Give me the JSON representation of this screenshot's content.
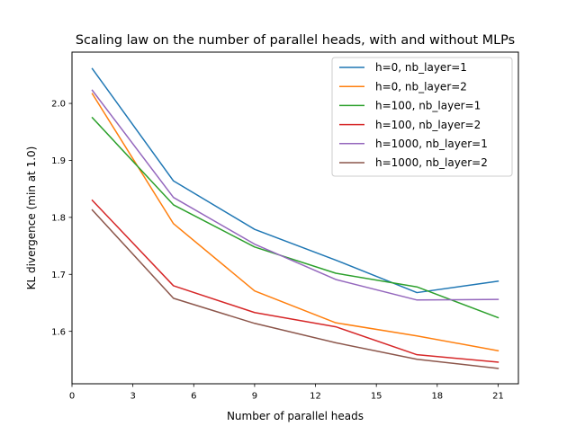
{
  "chart_data": {
    "type": "line",
    "title": "Scaling law on the number of parallel heads, with and without MLPs",
    "xlabel": "Number of parallel heads",
    "ylabel": "KL divergence (min at 1.0)",
    "xlim": [
      0,
      22
    ],
    "ylim": [
      1.508,
      2.09
    ],
    "xticks": [
      0,
      3,
      6,
      9,
      12,
      15,
      18,
      21
    ],
    "yticks": [
      1.6,
      1.7,
      1.8,
      1.9,
      2.0
    ],
    "ytick_labels": [
      "1.6",
      "1.7",
      "1.8",
      "1.9",
      "2.0"
    ],
    "x": [
      1,
      5,
      9,
      13,
      17,
      21
    ],
    "grid": false,
    "legend_position": "top-right",
    "series": [
      {
        "name": "h=0, nb_layer=1",
        "color": "#1f77b4",
        "values": [
          2.061,
          1.864,
          1.779,
          1.725,
          1.668,
          1.688
        ]
      },
      {
        "name": "h=0, nb_layer=2",
        "color": "#ff7f0e",
        "values": [
          2.017,
          1.789,
          1.671,
          1.615,
          1.592,
          1.566
        ]
      },
      {
        "name": "h=100, nb_layer=1",
        "color": "#2ca02c",
        "values": [
          1.975,
          1.822,
          1.748,
          1.702,
          1.678,
          1.624
        ]
      },
      {
        "name": "h=100, nb_layer=2",
        "color": "#d62728",
        "values": [
          1.83,
          1.68,
          1.633,
          1.608,
          1.559,
          1.546
        ]
      },
      {
        "name": "h=1000, nb_layer=1",
        "color": "#9467bd",
        "values": [
          2.023,
          1.835,
          1.753,
          1.691,
          1.655,
          1.656
        ]
      },
      {
        "name": "h=1000, nb_layer=2",
        "color": "#8c564b",
        "values": [
          1.813,
          1.658,
          1.614,
          1.58,
          1.551,
          1.535
        ]
      }
    ]
  }
}
